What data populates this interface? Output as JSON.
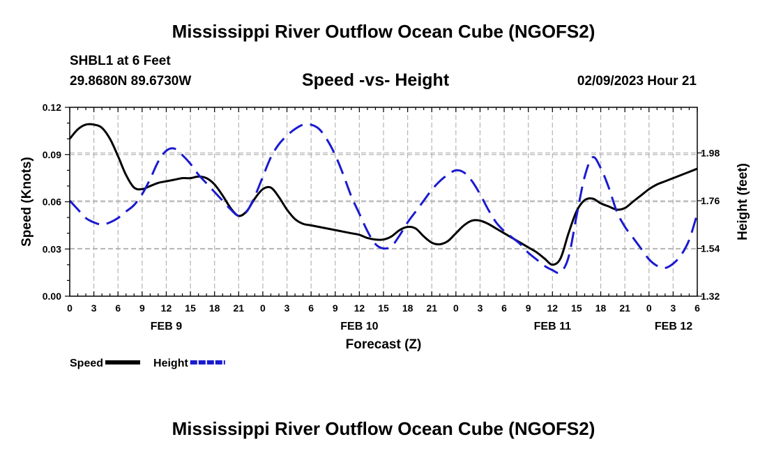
{
  "page": {
    "title_top": "Mississippi River Outflow Ocean Cube (NGOFS2)",
    "title_bottom": "Mississippi River Outflow Ocean Cube (NGOFS2)",
    "station": "SHBL1 at 6 Feet",
    "coords": "29.8680N  89.6730W",
    "subtitle": "Speed -vs- Height",
    "datetime": "02/09/2023 Hour 21"
  },
  "colors": {
    "speed": "#000000",
    "height": "#1a1ad0",
    "grid": "#b4b4b4"
  },
  "chart_data": {
    "type": "line",
    "title": "Speed -vs- Height",
    "xlabel": "Forecast (Z)",
    "ylabel": "Speed (Knots)",
    "ylabel_right": "Height (feet)",
    "x_unit": "hours since FEB 9 00Z",
    "xlim": [
      0,
      78
    ],
    "ylim": [
      0,
      0.12
    ],
    "ylim_right": [
      1.32,
      2.19
    ],
    "x_ticks": [
      0,
      3,
      6,
      9,
      12,
      15,
      18,
      21,
      24,
      27,
      30,
      33,
      36,
      39,
      42,
      45,
      48,
      51,
      54,
      57,
      60,
      63,
      66,
      69,
      72,
      75,
      78
    ],
    "x_tick_labels": [
      "0",
      "3",
      "6",
      "9",
      "12",
      "15",
      "18",
      "21",
      "0",
      "3",
      "6",
      "9",
      "12",
      "15",
      "18",
      "21",
      "0",
      "3",
      "6",
      "9",
      "12",
      "15",
      "18",
      "21",
      "0",
      "3",
      "6"
    ],
    "y_ticks": [
      0.0,
      0.03,
      0.06,
      0.09,
      0.12
    ],
    "y_tick_labels": [
      "0.00",
      "0.03",
      "0.06",
      "0.09",
      "0.12"
    ],
    "y_right_ticks": [
      1.32,
      1.54,
      1.76,
      1.98
    ],
    "y_right_tick_labels": [
      "1.32",
      "1.54",
      "1.76",
      "1.98"
    ],
    "day_labels": [
      {
        "x": 12,
        "label": "FEB 9"
      },
      {
        "x": 36,
        "label": "FEB 10"
      },
      {
        "x": 60,
        "label": "FEB 11"
      },
      {
        "x": 78,
        "label": "FEB 12"
      }
    ],
    "grid": true,
    "series": [
      {
        "name": "Speed",
        "axis": "left",
        "style": "solid",
        "x": [
          0,
          1,
          2,
          3,
          4,
          5,
          6,
          7,
          8,
          9,
          10,
          11,
          12,
          13,
          14,
          15,
          16,
          17,
          18,
          19,
          20,
          21,
          22,
          23,
          24,
          25,
          26,
          27,
          28,
          29,
          30,
          31,
          32,
          33,
          34,
          35,
          36,
          37,
          38,
          39,
          40,
          41,
          42,
          43,
          44,
          45,
          46,
          47,
          48,
          49,
          50,
          51,
          52,
          53,
          54,
          55,
          56,
          57,
          58,
          59,
          60,
          61,
          62,
          63,
          64,
          65,
          66,
          67,
          68,
          69,
          70,
          71,
          72,
          73,
          74,
          75,
          76,
          77,
          78
        ],
        "values": [
          0.1,
          0.106,
          0.109,
          0.109,
          0.107,
          0.1,
          0.089,
          0.077,
          0.069,
          0.068,
          0.07,
          0.072,
          0.073,
          0.074,
          0.075,
          0.075,
          0.076,
          0.075,
          0.071,
          0.064,
          0.056,
          0.051,
          0.054,
          0.062,
          0.068,
          0.069,
          0.063,
          0.055,
          0.049,
          0.046,
          0.045,
          0.044,
          0.043,
          0.042,
          0.041,
          0.04,
          0.039,
          0.037,
          0.036,
          0.036,
          0.038,
          0.042,
          0.044,
          0.043,
          0.038,
          0.034,
          0.033,
          0.035,
          0.04,
          0.045,
          0.048,
          0.048,
          0.046,
          0.043,
          0.04,
          0.037,
          0.034,
          0.031,
          0.028,
          0.024,
          0.02,
          0.024,
          0.04,
          0.054,
          0.061,
          0.062,
          0.059,
          0.057,
          0.055,
          0.056,
          0.06,
          0.064,
          0.068,
          0.071,
          0.073,
          0.075,
          0.077,
          0.079,
          0.081
        ]
      },
      {
        "name": "Height",
        "axis": "right",
        "style": "dashed",
        "x": [
          0,
          1,
          2,
          3,
          4,
          5,
          6,
          7,
          8,
          9,
          10,
          11,
          12,
          13,
          14,
          15,
          16,
          17,
          18,
          19,
          20,
          21,
          22,
          23,
          24,
          25,
          26,
          27,
          28,
          29,
          30,
          31,
          32,
          33,
          34,
          35,
          36,
          37,
          38,
          39,
          40,
          41,
          42,
          43,
          44,
          45,
          46,
          47,
          48,
          49,
          50,
          51,
          52,
          53,
          54,
          55,
          56,
          57,
          58,
          59,
          60,
          61,
          62,
          63,
          64,
          65,
          66,
          67,
          68,
          69,
          70,
          71,
          72,
          73,
          74,
          75,
          76,
          77,
          78
        ],
        "values": [
          1.76,
          1.72,
          1.68,
          1.66,
          1.65,
          1.66,
          1.68,
          1.71,
          1.74,
          1.79,
          1.86,
          1.94,
          1.99,
          2.0,
          1.97,
          1.93,
          1.88,
          1.84,
          1.8,
          1.76,
          1.72,
          1.69,
          1.71,
          1.78,
          1.87,
          1.96,
          2.02,
          2.06,
          2.09,
          2.11,
          2.11,
          2.09,
          2.04,
          1.97,
          1.88,
          1.78,
          1.7,
          1.62,
          1.56,
          1.54,
          1.55,
          1.6,
          1.66,
          1.71,
          1.76,
          1.81,
          1.85,
          1.88,
          1.9,
          1.89,
          1.85,
          1.79,
          1.72,
          1.66,
          1.62,
          1.59,
          1.56,
          1.52,
          1.49,
          1.46,
          1.44,
          1.43,
          1.5,
          1.69,
          1.87,
          1.96,
          1.91,
          1.82,
          1.71,
          1.64,
          1.59,
          1.54,
          1.49,
          1.46,
          1.45,
          1.47,
          1.51,
          1.58,
          1.7
        ]
      }
    ],
    "legend": [
      {
        "label": "Speed",
        "style": "solid"
      },
      {
        "label": "Height",
        "style": "dashed"
      }
    ],
    "legend_position": "bottom-left"
  }
}
